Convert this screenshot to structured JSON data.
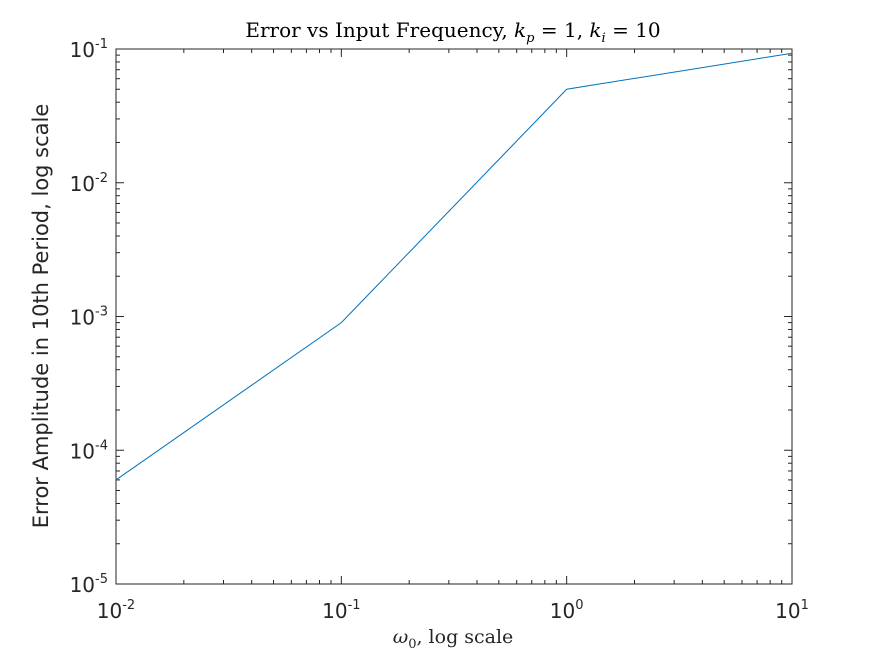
{
  "chart_data": {
    "type": "line",
    "title": {
      "main": "Error vs Input Frequency, ",
      "kp_symbol": "k",
      "kp_sub": "p",
      "kp_eq": " = 1, ",
      "ki_symbol": "k",
      "ki_sub": "i",
      "ki_eq": " = 10"
    },
    "xlabel": {
      "symbol": "ω",
      "sub": "0",
      "rest": ", log scale"
    },
    "ylabel": "Error Amplitude in 10th Period, log scale",
    "xscale": "log",
    "yscale": "log",
    "xlim": [
      0.01,
      10
    ],
    "ylim": [
      1e-05,
      0.1
    ],
    "grid": false,
    "x_ticks": [
      {
        "value": 0.01,
        "base": "10",
        "exp": "-2"
      },
      {
        "value": 0.1,
        "base": "10",
        "exp": "-1"
      },
      {
        "value": 1,
        "base": "10",
        "exp": "0"
      },
      {
        "value": 10,
        "base": "10",
        "exp": "1"
      }
    ],
    "y_ticks": [
      {
        "value": 1e-05,
        "base": "10",
        "exp": "-5"
      },
      {
        "value": 0.0001,
        "base": "10",
        "exp": "-4"
      },
      {
        "value": 0.001,
        "base": "10",
        "exp": "-3"
      },
      {
        "value": 0.01,
        "base": "10",
        "exp": "-2"
      },
      {
        "value": 0.1,
        "base": "10",
        "exp": "-1"
      }
    ],
    "series": [
      {
        "color": "#0072bd",
        "x": [
          0.01,
          0.1,
          1,
          10
        ],
        "y": [
          6e-05,
          0.0009,
          0.05,
          0.093
        ]
      }
    ]
  }
}
